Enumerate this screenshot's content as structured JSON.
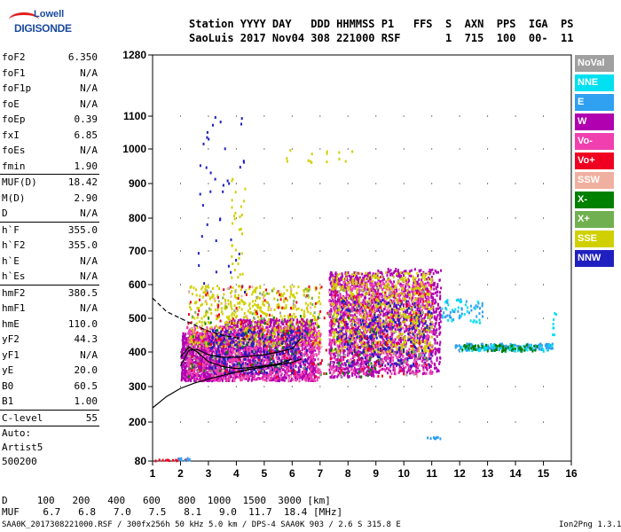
{
  "logo": {
    "line1": "Lowell",
    "line2": "DIGISONDE"
  },
  "header": {
    "labels": "Station YYYY DAY   DDD HHMMSS P1   FFS  S  AXN  PPS  IGA  PS",
    "values": "SaoLuis 2017 Nov04 308 221000 RSF       1  715  100  00-  11"
  },
  "params": [
    {
      "k": "foF2",
      "v": "6.350"
    },
    {
      "k": "foF1",
      "v": "N/A"
    },
    {
      "k": "foF1p",
      "v": "N/A"
    },
    {
      "k": "foE",
      "v": "N/A"
    },
    {
      "k": "foEp",
      "v": "0.39"
    },
    {
      "k": "fxI",
      "v": "6.85"
    },
    {
      "k": "foEs",
      "v": "N/A"
    },
    {
      "k": "fmin",
      "v": "1.90",
      "sep": true
    },
    {
      "k": "MUF(D)",
      "v": "18.42"
    },
    {
      "k": "M(D)",
      "v": "2.90"
    },
    {
      "k": "D",
      "v": "N/A",
      "sep": true
    },
    {
      "k": "h`F",
      "v": "355.0"
    },
    {
      "k": "h`F2",
      "v": "355.0"
    },
    {
      "k": "h`E",
      "v": "N/A"
    },
    {
      "k": "h`Es",
      "v": "N/A",
      "sep": true
    },
    {
      "k": "hmF2",
      "v": "380.5"
    },
    {
      "k": "hmF1",
      "v": "N/A"
    },
    {
      "k": "hmE",
      "v": "110.0"
    },
    {
      "k": "yF2",
      "v": "44.3"
    },
    {
      "k": "yF1",
      "v": "N/A"
    },
    {
      "k": "yE",
      "v": "20.0"
    },
    {
      "k": "B0",
      "v": "60.5"
    },
    {
      "k": "B1",
      "v": "1.00",
      "sep": true
    },
    {
      "k": "C-level",
      "v": "55",
      "sep": true
    }
  ],
  "autoscale": [
    "Auto:",
    "Artist5",
    "500200"
  ],
  "legend": [
    {
      "label": "NoVal",
      "color": "#a0a0a0"
    },
    {
      "label": "NNE",
      "color": "#00e0f0"
    },
    {
      "label": "E",
      "color": "#30a0f0"
    },
    {
      "label": "W",
      "color": "#b000b0"
    },
    {
      "label": "Vo-",
      "color": "#f040b0"
    },
    {
      "label": "Vo+",
      "color": "#f00020"
    },
    {
      "label": "SSW",
      "color": "#f0b0a0"
    },
    {
      "label": "X-",
      "color": "#008000"
    },
    {
      "label": "X+",
      "color": "#70b050"
    },
    {
      "label": "SSE",
      "color": "#d0d000"
    },
    {
      "label": "NNW",
      "color": "#2020c0"
    }
  ],
  "footer": {
    "d_line": "D     100   200   400   600   800  1000  1500  3000 [km]",
    "muf_line": "MUF    6.7   6.8   7.0   7.5   8.1   9.0  11.7  18.4 [MHz]",
    "file_line": "SAA0K_2017308221000.RSF / 300fx256h 50 kHz 5.0 km / DPS-4 SAA0K 903 / 2.6 S 315.8 E",
    "version": "Ion2Png 1.3.17"
  },
  "chart_data": {
    "type": "scatter",
    "title": "",
    "xlabel": "",
    "ylabel": "",
    "xlim": [
      1,
      16
    ],
    "xticks": [
      1,
      2,
      3,
      4,
      5,
      6,
      7,
      8,
      9,
      10,
      11,
      12,
      13,
      14,
      15,
      16
    ],
    "y_scale": "nonlinear (height axis)",
    "yticks": [
      80,
      200,
      300,
      400,
      500,
      600,
      700,
      800,
      900,
      1000,
      1100,
      1280
    ],
    "ylim": [
      80,
      1280
    ],
    "series": [
      {
        "color": "#b000b0",
        "clusters": [
          {
            "x": [
              2.0,
              3.5
            ],
            "y": [
              320,
              460
            ],
            "n": 900
          },
          {
            "x": [
              3.5,
              6.8
            ],
            "y": [
              320,
              500
            ],
            "n": 1400
          },
          {
            "x": [
              7.3,
              9.0
            ],
            "y": [
              330,
              640
            ],
            "n": 900
          },
          {
            "x": [
              9.0,
              11.3
            ],
            "y": [
              340,
              650
            ],
            "n": 900
          }
        ]
      },
      {
        "color": "#f040b0",
        "clusters": [
          {
            "x": [
              2.2,
              7.0
            ],
            "y": [
              320,
              480
            ],
            "n": 900
          },
          {
            "x": [
              7.3,
              11.0
            ],
            "y": [
              340,
              620
            ],
            "n": 700
          }
        ]
      },
      {
        "color": "#d0d000",
        "clusters": [
          {
            "x": [
              2.3,
              7.0
            ],
            "y": [
              420,
              600
            ],
            "n": 500
          },
          {
            "x": [
              7.4,
              11.0
            ],
            "y": [
              400,
              640
            ],
            "n": 600
          },
          {
            "x": [
              5.5,
              8.2
            ],
            "y": [
              960,
              1000
            ],
            "n": 14
          },
          {
            "x": [
              3.8,
              4.3
            ],
            "y": [
              600,
              920
            ],
            "n": 30
          }
        ]
      },
      {
        "color": "#2020c0",
        "clusters": [
          {
            "x": [
              3.0,
              6.5
            ],
            "y": [
              340,
              470
            ],
            "n": 300
          },
          {
            "x": [
              7.5,
              11.0
            ],
            "y": [
              360,
              560
            ],
            "n": 250
          },
          {
            "x": [
              2.6,
              4.3
            ],
            "y": [
              560,
              1100
            ],
            "n": 40
          }
        ]
      },
      {
        "color": "#f00020",
        "clusters": [
          {
            "x": [
              2.2,
              11.0
            ],
            "y": [
              330,
              600
            ],
            "n": 220
          },
          {
            "x": [
              1.0,
              2.2
            ],
            "y": [
              84,
              90
            ],
            "n": 12
          }
        ]
      },
      {
        "color": "#30a0f0",
        "clusters": [
          {
            "x": [
              11.8,
              15.3
            ],
            "y": [
              408,
              428
            ],
            "n": 160
          },
          {
            "x": [
              11.3,
              12.8
            ],
            "y": [
              500,
              560
            ],
            "n": 40
          },
          {
            "x": [
              10.8,
              11.3
            ],
            "y": [
              152,
              158
            ],
            "n": 10
          },
          {
            "x": [
              1.8,
              2.3
            ],
            "y": [
              86,
              94
            ],
            "n": 10
          }
        ]
      },
      {
        "color": "#00e0f0",
        "clusters": [
          {
            "x": [
              12.0,
              15.3
            ],
            "y": [
              405,
              425
            ],
            "n": 60
          },
          {
            "x": [
              15.3,
              15.45
            ],
            "y": [
              445,
              520
            ],
            "n": 8
          },
          {
            "x": [
              11.3,
              12.8
            ],
            "y": [
              490,
              560
            ],
            "n": 30
          }
        ]
      },
      {
        "color": "#008000",
        "clusters": [
          {
            "x": [
              2.2,
              9.0
            ],
            "y": [
              330,
              520
            ],
            "n": 80
          },
          {
            "x": [
              12.0,
              14.8
            ],
            "y": [
              405,
              425
            ],
            "n": 60
          }
        ]
      },
      {
        "color": "#70b050",
        "clusters": [
          {
            "x": [
              2.2,
              11.0
            ],
            "y": [
              340,
              600
            ],
            "n": 70
          }
        ]
      },
      {
        "color": "#a0a0a0",
        "clusters": [
          {
            "x": [
              2.2,
              11.0
            ],
            "y": [
              330,
              600
            ],
            "n": 60
          }
        ]
      },
      {
        "color": "#f0b0a0",
        "clusters": [
          {
            "x": [
              2.2,
              11.0
            ],
            "y": [
              330,
              600
            ],
            "n": 50
          }
        ]
      }
    ],
    "profile_curves": [
      {
        "style": "solid",
        "points": [
          [
            1.0,
            240
          ],
          [
            1.5,
            272
          ],
          [
            2.0,
            295
          ],
          [
            2.5,
            310
          ],
          [
            3.0,
            322
          ],
          [
            3.5,
            332
          ],
          [
            4.0,
            342
          ],
          [
            4.5,
            350
          ],
          [
            5.0,
            357
          ],
          [
            5.5,
            363
          ],
          [
            6.0,
            370
          ],
          [
            6.35,
            380
          ]
        ]
      },
      {
        "style": "solid",
        "points": [
          [
            2.0,
            360
          ],
          [
            2.3,
            405
          ],
          [
            2.6,
            408
          ],
          [
            3.0,
            392
          ],
          [
            3.5,
            385
          ],
          [
            4.0,
            385
          ],
          [
            4.5,
            388
          ],
          [
            5.0,
            392
          ],
          [
            5.5,
            400
          ],
          [
            6.0,
            410
          ],
          [
            6.3,
            440
          ]
        ]
      },
      {
        "style": "solid",
        "points": [
          [
            2.0,
            385
          ],
          [
            2.3,
            415
          ],
          [
            2.6,
            400
          ],
          [
            3.0,
            372
          ],
          [
            3.5,
            358
          ],
          [
            4.0,
            352
          ],
          [
            4.5,
            355
          ],
          [
            5.0,
            360
          ],
          [
            5.5,
            366
          ],
          [
            6.0,
            380
          ]
        ]
      },
      {
        "style": "dashed",
        "points": [
          [
            1.0,
            560
          ],
          [
            1.5,
            520
          ],
          [
            2.0,
            500
          ],
          [
            2.5,
            480
          ],
          [
            3.0,
            462
          ],
          [
            3.5,
            450
          ],
          [
            4.0,
            442
          ],
          [
            4.5,
            436
          ]
        ]
      }
    ]
  }
}
